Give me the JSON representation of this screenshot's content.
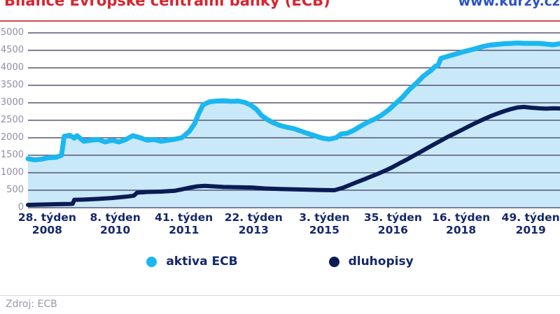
{
  "header": {
    "title": "Bilance Evropské centrální banky (ECB)",
    "site": "www.kurzy.cz"
  },
  "footer": {
    "source": "Zdroj: ECB"
  },
  "colors": {
    "title_red": "#d8242f",
    "rule_red": "#d14952",
    "site_blue": "#2a53c4",
    "gridline": "#565673",
    "y_label": "#8e8ea8",
    "x_label_navy": "#15276b",
    "aktiva_line": "#1ab7f0",
    "aktiva_fill": "#c9e9f9",
    "dluhopisy_line": "#0b1b54",
    "source_gray": "#9898ae"
  },
  "chart_data": {
    "type": "area",
    "title": "Bilance Evropské centrální banky (ECB)",
    "xlabel": "",
    "ylabel": "",
    "ylim": [
      0,
      5000
    ],
    "y_ticks": [
      0,
      500,
      1000,
      1500,
      2000,
      2500,
      3000,
      3500,
      4000,
      4500,
      5000
    ],
    "grid": true,
    "legend_position": "bottom",
    "x_ticks": [
      {
        "week": "28. týden",
        "year": "2008",
        "pos": 0.036
      },
      {
        "week": "8. týden",
        "year": "2010",
        "pos": 0.164
      },
      {
        "week": "41. týden",
        "year": "2011",
        "pos": 0.293
      },
      {
        "week": "22. týden",
        "year": "2013",
        "pos": 0.424
      },
      {
        "week": "3. týden",
        "year": "2015",
        "pos": 0.557
      },
      {
        "week": "35. týden",
        "year": "2016",
        "pos": 0.686
      },
      {
        "week": "16. týden",
        "year": "2018",
        "pos": 0.814
      },
      {
        "week": "49. týden",
        "year": "2019",
        "pos": 0.945
      }
    ],
    "series": [
      {
        "name": "aktiva ECB",
        "color": "#1ab7f0",
        "fill": "#c9e9f9",
        "points": [
          [
            0,
            1400
          ],
          [
            0.013,
            1370
          ],
          [
            0.026,
            1390
          ],
          [
            0.039,
            1430
          ],
          [
            0.053,
            1440
          ],
          [
            0.063,
            1500
          ],
          [
            0.068,
            2040
          ],
          [
            0.079,
            2070
          ],
          [
            0.087,
            1990
          ],
          [
            0.092,
            2060
          ],
          [
            0.105,
            1900
          ],
          [
            0.118,
            1930
          ],
          [
            0.132,
            1950
          ],
          [
            0.145,
            1880
          ],
          [
            0.158,
            1930
          ],
          [
            0.171,
            1880
          ],
          [
            0.184,
            1950
          ],
          [
            0.197,
            2060
          ],
          [
            0.211,
            2000
          ],
          [
            0.224,
            1930
          ],
          [
            0.237,
            1950
          ],
          [
            0.25,
            1900
          ],
          [
            0.263,
            1930
          ],
          [
            0.276,
            1960
          ],
          [
            0.289,
            2000
          ],
          [
            0.303,
            2180
          ],
          [
            0.313,
            2400
          ],
          [
            0.321,
            2700
          ],
          [
            0.329,
            2940
          ],
          [
            0.337,
            3000
          ],
          [
            0.342,
            3030
          ],
          [
            0.355,
            3050
          ],
          [
            0.368,
            3060
          ],
          [
            0.382,
            3040
          ],
          [
            0.395,
            3050
          ],
          [
            0.408,
            3010
          ],
          [
            0.418,
            2940
          ],
          [
            0.429,
            2820
          ],
          [
            0.439,
            2640
          ],
          [
            0.45,
            2520
          ],
          [
            0.461,
            2430
          ],
          [
            0.474,
            2350
          ],
          [
            0.487,
            2300
          ],
          [
            0.5,
            2260
          ],
          [
            0.513,
            2190
          ],
          [
            0.526,
            2120
          ],
          [
            0.539,
            2060
          ],
          [
            0.553,
            1990
          ],
          [
            0.566,
            1960
          ],
          [
            0.579,
            2000
          ],
          [
            0.589,
            2110
          ],
          [
            0.6,
            2130
          ],
          [
            0.612,
            2210
          ],
          [
            0.625,
            2330
          ],
          [
            0.638,
            2440
          ],
          [
            0.651,
            2530
          ],
          [
            0.664,
            2640
          ],
          [
            0.678,
            2800
          ],
          [
            0.691,
            2980
          ],
          [
            0.704,
            3160
          ],
          [
            0.717,
            3380
          ],
          [
            0.73,
            3560
          ],
          [
            0.743,
            3760
          ],
          [
            0.757,
            3920
          ],
          [
            0.766,
            4050
          ],
          [
            0.771,
            4080
          ],
          [
            0.776,
            4270
          ],
          [
            0.789,
            4330
          ],
          [
            0.803,
            4390
          ],
          [
            0.816,
            4450
          ],
          [
            0.829,
            4500
          ],
          [
            0.842,
            4550
          ],
          [
            0.855,
            4610
          ],
          [
            0.868,
            4650
          ],
          [
            0.882,
            4670
          ],
          [
            0.895,
            4690
          ],
          [
            0.908,
            4700
          ],
          [
            0.921,
            4710
          ],
          [
            0.934,
            4700
          ],
          [
            0.947,
            4700
          ],
          [
            0.961,
            4700
          ],
          [
            0.974,
            4680
          ],
          [
            0.987,
            4660
          ],
          [
            1,
            4690
          ]
        ]
      },
      {
        "name": "dluhopisy",
        "color": "#0b1b54",
        "fill": null,
        "points": [
          [
            0,
            80
          ],
          [
            0.026,
            90
          ],
          [
            0.053,
            100
          ],
          [
            0.079,
            108
          ],
          [
            0.084,
            112
          ],
          [
            0.087,
            225
          ],
          [
            0.105,
            232
          ],
          [
            0.132,
            252
          ],
          [
            0.158,
            278
          ],
          [
            0.184,
            315
          ],
          [
            0.199,
            345
          ],
          [
            0.205,
            430
          ],
          [
            0.224,
            450
          ],
          [
            0.25,
            460
          ],
          [
            0.276,
            485
          ],
          [
            0.289,
            525
          ],
          [
            0.303,
            570
          ],
          [
            0.318,
            610
          ],
          [
            0.332,
            625
          ],
          [
            0.349,
            610
          ],
          [
            0.368,
            592
          ],
          [
            0.395,
            585
          ],
          [
            0.421,
            578
          ],
          [
            0.447,
            548
          ],
          [
            0.474,
            536
          ],
          [
            0.5,
            526
          ],
          [
            0.526,
            516
          ],
          [
            0.553,
            506
          ],
          [
            0.576,
            500
          ],
          [
            0.592,
            570
          ],
          [
            0.605,
            650
          ],
          [
            0.618,
            730
          ],
          [
            0.632,
            812
          ],
          [
            0.645,
            892
          ],
          [
            0.658,
            972
          ],
          [
            0.671,
            1058
          ],
          [
            0.684,
            1150
          ],
          [
            0.697,
            1258
          ],
          [
            0.711,
            1368
          ],
          [
            0.724,
            1478
          ],
          [
            0.737,
            1588
          ],
          [
            0.75,
            1700
          ],
          [
            0.763,
            1810
          ],
          [
            0.776,
            1918
          ],
          [
            0.789,
            2026
          ],
          [
            0.803,
            2130
          ],
          [
            0.816,
            2230
          ],
          [
            0.829,
            2330
          ],
          [
            0.842,
            2428
          ],
          [
            0.855,
            2520
          ],
          [
            0.868,
            2608
          ],
          [
            0.882,
            2690
          ],
          [
            0.895,
            2760
          ],
          [
            0.908,
            2822
          ],
          [
            0.921,
            2868
          ],
          [
            0.932,
            2882
          ],
          [
            0.947,
            2858
          ],
          [
            0.961,
            2842
          ],
          [
            0.974,
            2832
          ],
          [
            0.987,
            2842
          ],
          [
            1,
            2838
          ]
        ]
      }
    ]
  }
}
